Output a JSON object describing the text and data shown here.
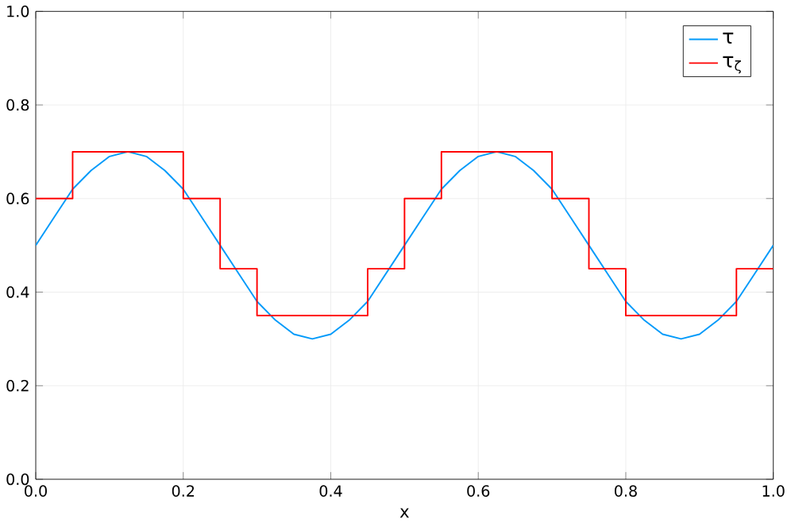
{
  "chart_data": {
    "type": "line",
    "xlabel": "x",
    "legend": "top right",
    "grid": true,
    "line_style": "solid",
    "xlim": [
      0,
      1
    ],
    "ylim": [
      0,
      1
    ],
    "xticks": [
      {
        "value": 0,
        "label": "0.0"
      },
      {
        "value": 0.2,
        "label": "0.2"
      },
      {
        "value": 0.4,
        "label": "0.4"
      },
      {
        "value": 0.6,
        "label": "0.6"
      },
      {
        "value": 0.8,
        "label": "0.8"
      },
      {
        "value": 1,
        "label": "1.0"
      }
    ],
    "yticks": [
      {
        "value": 0,
        "label": "0.0"
      },
      {
        "value": 0.2,
        "label": "0.2"
      },
      {
        "value": 0.4,
        "label": "0.4"
      },
      {
        "value": 0.6,
        "label": "0.6"
      },
      {
        "value": 0.8,
        "label": "0.8"
      },
      {
        "value": 1,
        "label": "1.0"
      }
    ],
    "series": [
      {
        "name": "τ",
        "color": "#009afa",
        "x": [
          0,
          0.025,
          0.05,
          0.075,
          0.1,
          0.125,
          0.15,
          0.175,
          0.2,
          0.225,
          0.25,
          0.275,
          0.3,
          0.325,
          0.35,
          0.375,
          0.4,
          0.425,
          0.45,
          0.475,
          0.5,
          0.525,
          0.55,
          0.575,
          0.6,
          0.625,
          0.65,
          0.675,
          0.7,
          0.725,
          0.75,
          0.775,
          0.8,
          0.825,
          0.85,
          0.875,
          0.9,
          0.925,
          0.95,
          0.975,
          1
        ],
        "values": [
          0.5,
          0.56,
          0.62,
          0.66,
          0.69,
          0.7,
          0.69,
          0.66,
          0.62,
          0.56,
          0.5,
          0.44,
          0.38,
          0.34,
          0.31,
          0.3,
          0.31,
          0.34,
          0.38,
          0.44,
          0.5,
          0.56,
          0.62,
          0.66,
          0.69,
          0.7,
          0.69,
          0.66,
          0.62,
          0.56,
          0.5,
          0.44,
          0.38,
          0.34,
          0.31,
          0.3,
          0.31,
          0.34,
          0.38,
          0.44,
          0.5
        ]
      },
      {
        "name": "τ$_{ζ}$",
        "type": "step",
        "color": "#ff0000",
        "x": [
          0,
          0.05,
          0.2,
          0.25,
          0.3,
          0.45,
          0.5,
          0.55,
          0.7,
          0.75,
          0.8,
          0.95,
          1
        ],
        "values": [
          0.6,
          0.7,
          0.6,
          0.45,
          0.35,
          0.45,
          0.6,
          0.7,
          0.6,
          0.45,
          0.35,
          0.45,
          0.45
        ]
      }
    ]
  }
}
